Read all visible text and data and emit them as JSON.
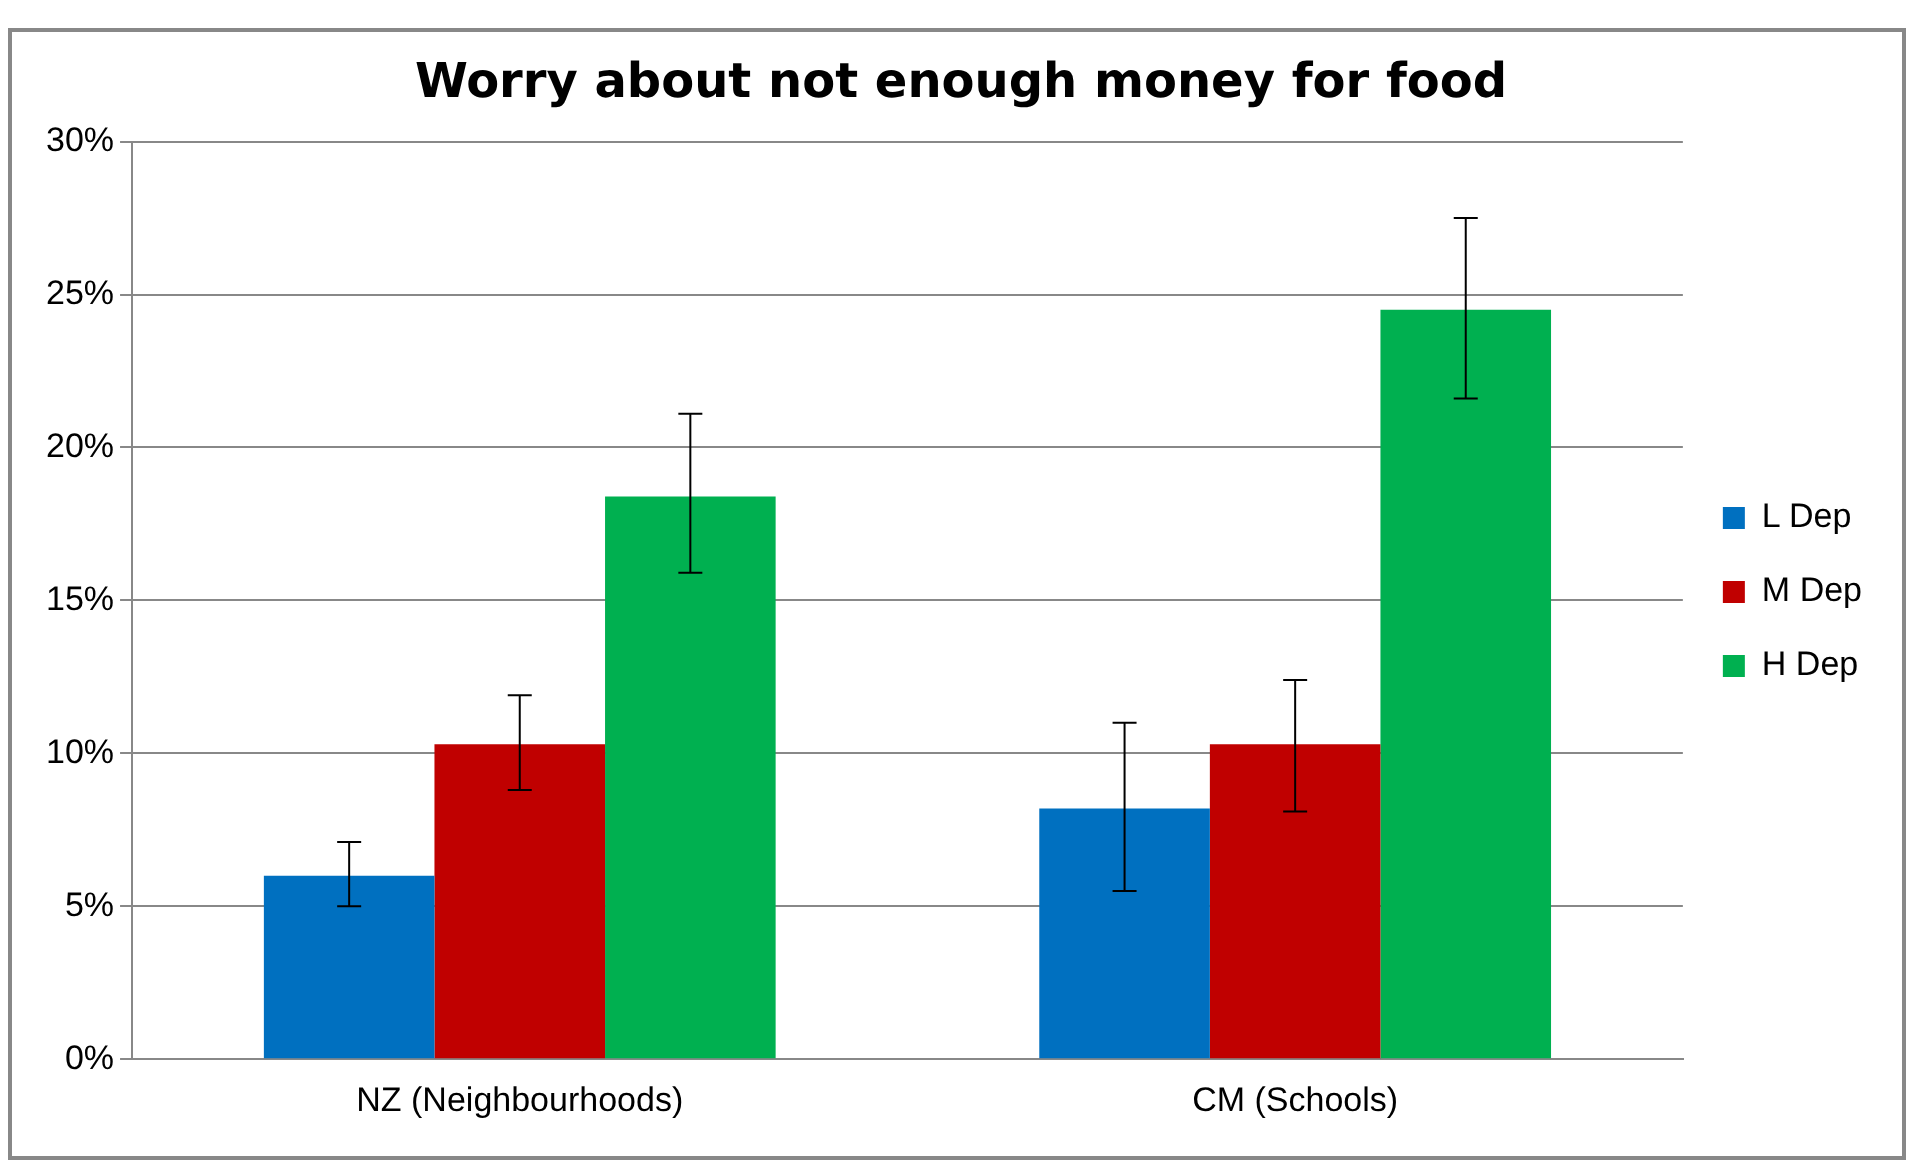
{
  "chart_data": {
    "type": "bar",
    "title": "Worry about not enough money for food",
    "categories": [
      "NZ (Neighbourhoods)",
      "CM (Schools)"
    ],
    "series": [
      {
        "name": "L Dep",
        "color": "#0070c0",
        "values": [
          6.0,
          8.2
        ],
        "errors": [
          [
            5.0,
            7.1
          ],
          [
            5.5,
            11.0
          ]
        ]
      },
      {
        "name": "M Dep",
        "color": "#c00000",
        "values": [
          10.3,
          10.3
        ],
        "errors": [
          [
            8.8,
            11.9
          ],
          [
            8.1,
            12.4
          ]
        ]
      },
      {
        "name": "H Dep",
        "color": "#00b050",
        "values": [
          18.4,
          24.5
        ],
        "errors": [
          [
            15.9,
            21.1
          ],
          [
            21.6,
            27.5
          ]
        ]
      }
    ],
    "ylim": [
      0,
      30
    ],
    "yticks": [
      {
        "value": 0,
        "label": "0%"
      },
      {
        "value": 5,
        "label": "5%"
      },
      {
        "value": 10,
        "label": "10%"
      },
      {
        "value": 15,
        "label": "15%"
      },
      {
        "value": 20,
        "label": "20%"
      },
      {
        "value": 25,
        "label": "25%"
      },
      {
        "value": 30,
        "label": "30%"
      }
    ],
    "grid": "y",
    "legend": "right"
  }
}
